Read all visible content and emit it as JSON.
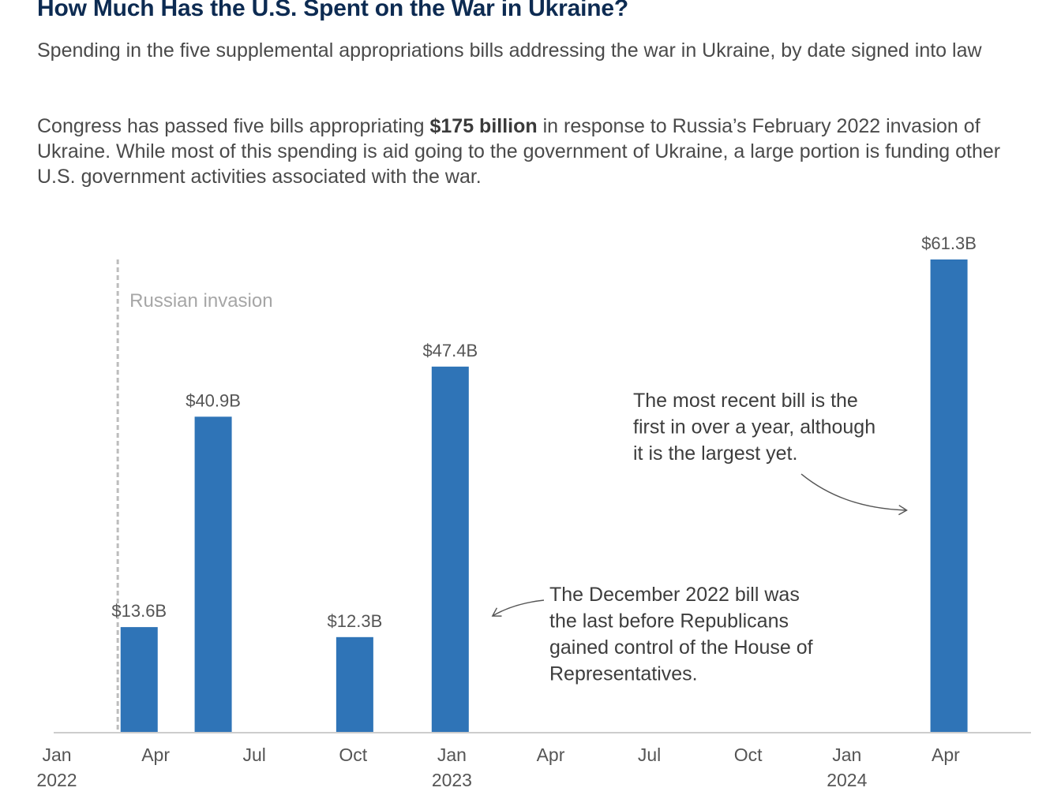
{
  "header": {
    "title": "How Much Has the U.S. Spent on the War in Ukraine?",
    "subtitle": "Spending in the five supplemental appropriations bills addressing the war in Ukraine, by date signed into law",
    "intro_before": "Congress has passed five bills appropriating ",
    "intro_bold": "$175 billion",
    "intro_after": " in response to Russia’s February 2022 invasion of Ukraine. While most of this spending is aid going to the government of Ukraine, a large portion is funding other U.S. government activities associated with the war."
  },
  "chart_data": {
    "type": "bar",
    "title": "How Much Has the U.S. Spent on the War in Ukraine?",
    "xlabel": "",
    "ylabel": "",
    "x_unit": "months since Jan 2022",
    "xlim": [
      0,
      29.5
    ],
    "ylim": [
      0,
      61.3
    ],
    "grid": false,
    "series": [
      {
        "name": "Supplemental appropriations",
        "color": "#2f74b7",
        "points": [
          {
            "x": 2.5,
            "value": 13.6,
            "label": "$13.6B"
          },
          {
            "x": 4.75,
            "value": 40.9,
            "label": "$40.9B"
          },
          {
            "x": 9.05,
            "value": 12.3,
            "label": "$12.3B"
          },
          {
            "x": 11.95,
            "value": 47.4,
            "label": "$47.4B"
          },
          {
            "x": 27.1,
            "value": 61.3,
            "label": "$61.3B"
          }
        ]
      }
    ],
    "x_ticks": [
      {
        "x": 0,
        "line1": "Jan",
        "line2": "2022"
      },
      {
        "x": 3,
        "line1": "Apr",
        "line2": ""
      },
      {
        "x": 6,
        "line1": "Jul",
        "line2": ""
      },
      {
        "x": 9,
        "line1": "Oct",
        "line2": ""
      },
      {
        "x": 12,
        "line1": "Jan",
        "line2": "2023"
      },
      {
        "x": 15,
        "line1": "Apr",
        "line2": ""
      },
      {
        "x": 18,
        "line1": "Jul",
        "line2": ""
      },
      {
        "x": 21,
        "line1": "Oct",
        "line2": ""
      },
      {
        "x": 24,
        "line1": "Jan",
        "line2": "2024"
      },
      {
        "x": 27,
        "line1": "Apr",
        "line2": ""
      }
    ],
    "event": {
      "x": 1.85,
      "label": "Russian invasion"
    },
    "annotations": [
      {
        "text": [
          "The most recent bill is the",
          "first in over a year, although",
          "it is the largest yet."
        ],
        "target_bar": 4
      },
      {
        "text": [
          "The December 2022 bill was",
          "the last before Republicans",
          "gained control of the House of",
          "Representatives."
        ],
        "target_bar": 3
      }
    ]
  },
  "colors": {
    "title": "#0d2b52",
    "bar": "#2f74b7",
    "text": "#3d3d3d",
    "muted": "#a6a6a6",
    "axis": "#cccccc"
  }
}
